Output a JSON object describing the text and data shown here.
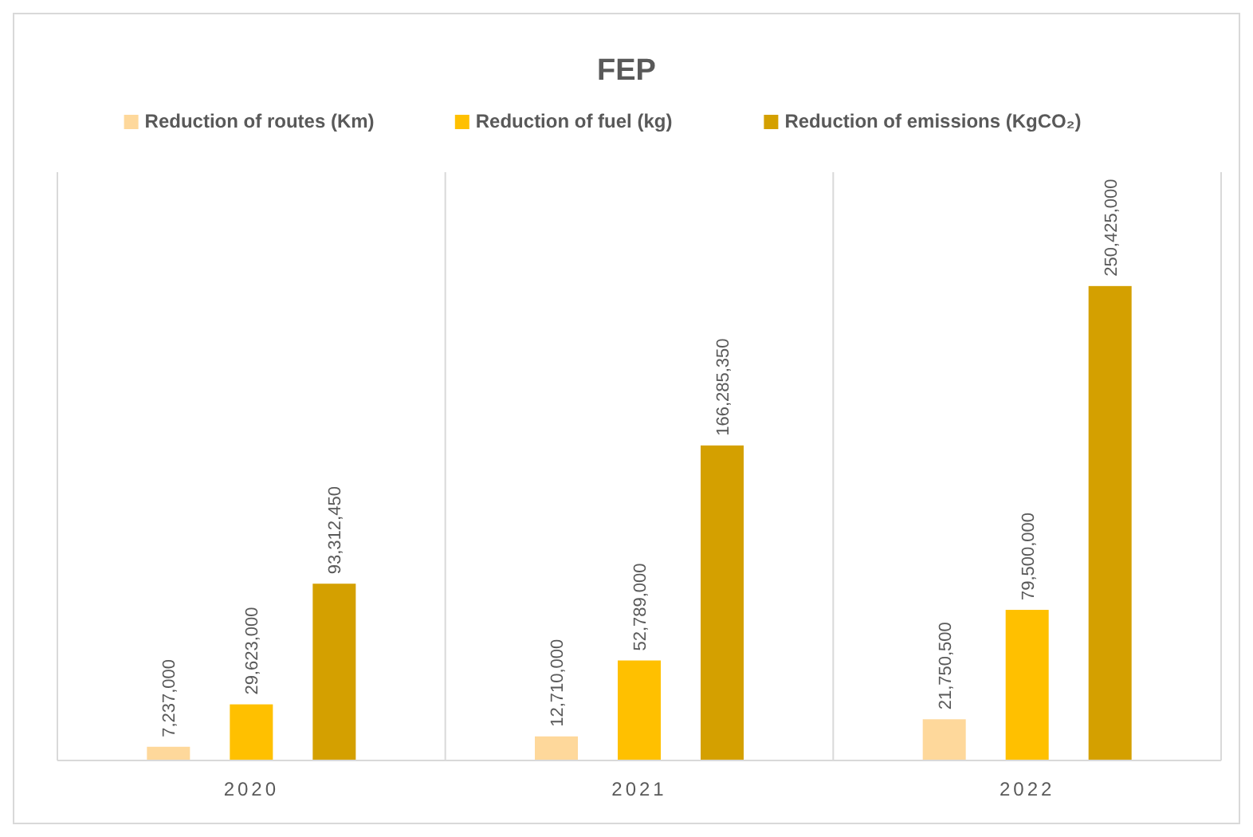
{
  "chart_data": {
    "type": "bar",
    "title": "FEP",
    "categories": [
      "2020",
      "2021",
      "2022"
    ],
    "series": [
      {
        "name": "Reduction of routes (Km)",
        "color": "#fed89b",
        "values": [
          7237000,
          12710000,
          21750500
        ],
        "value_labels": [
          "7,237,000",
          "12,710,000",
          "21,750,500"
        ]
      },
      {
        "name": "Reduction of fuel (kg)",
        "color": "#ffc000",
        "values": [
          29623000,
          52789000,
          79500000
        ],
        "value_labels": [
          "29,623,000",
          "52,789,000",
          "79,500,000"
        ]
      },
      {
        "name": "Reduction of emissions (KgCO₂)",
        "color": "#d4a000",
        "values": [
          93312450,
          166285350,
          250425000
        ],
        "value_labels": [
          "93,312,450",
          "166,285,350",
          "250,425,000"
        ]
      }
    ],
    "legend": "top",
    "grid": "x"
  }
}
